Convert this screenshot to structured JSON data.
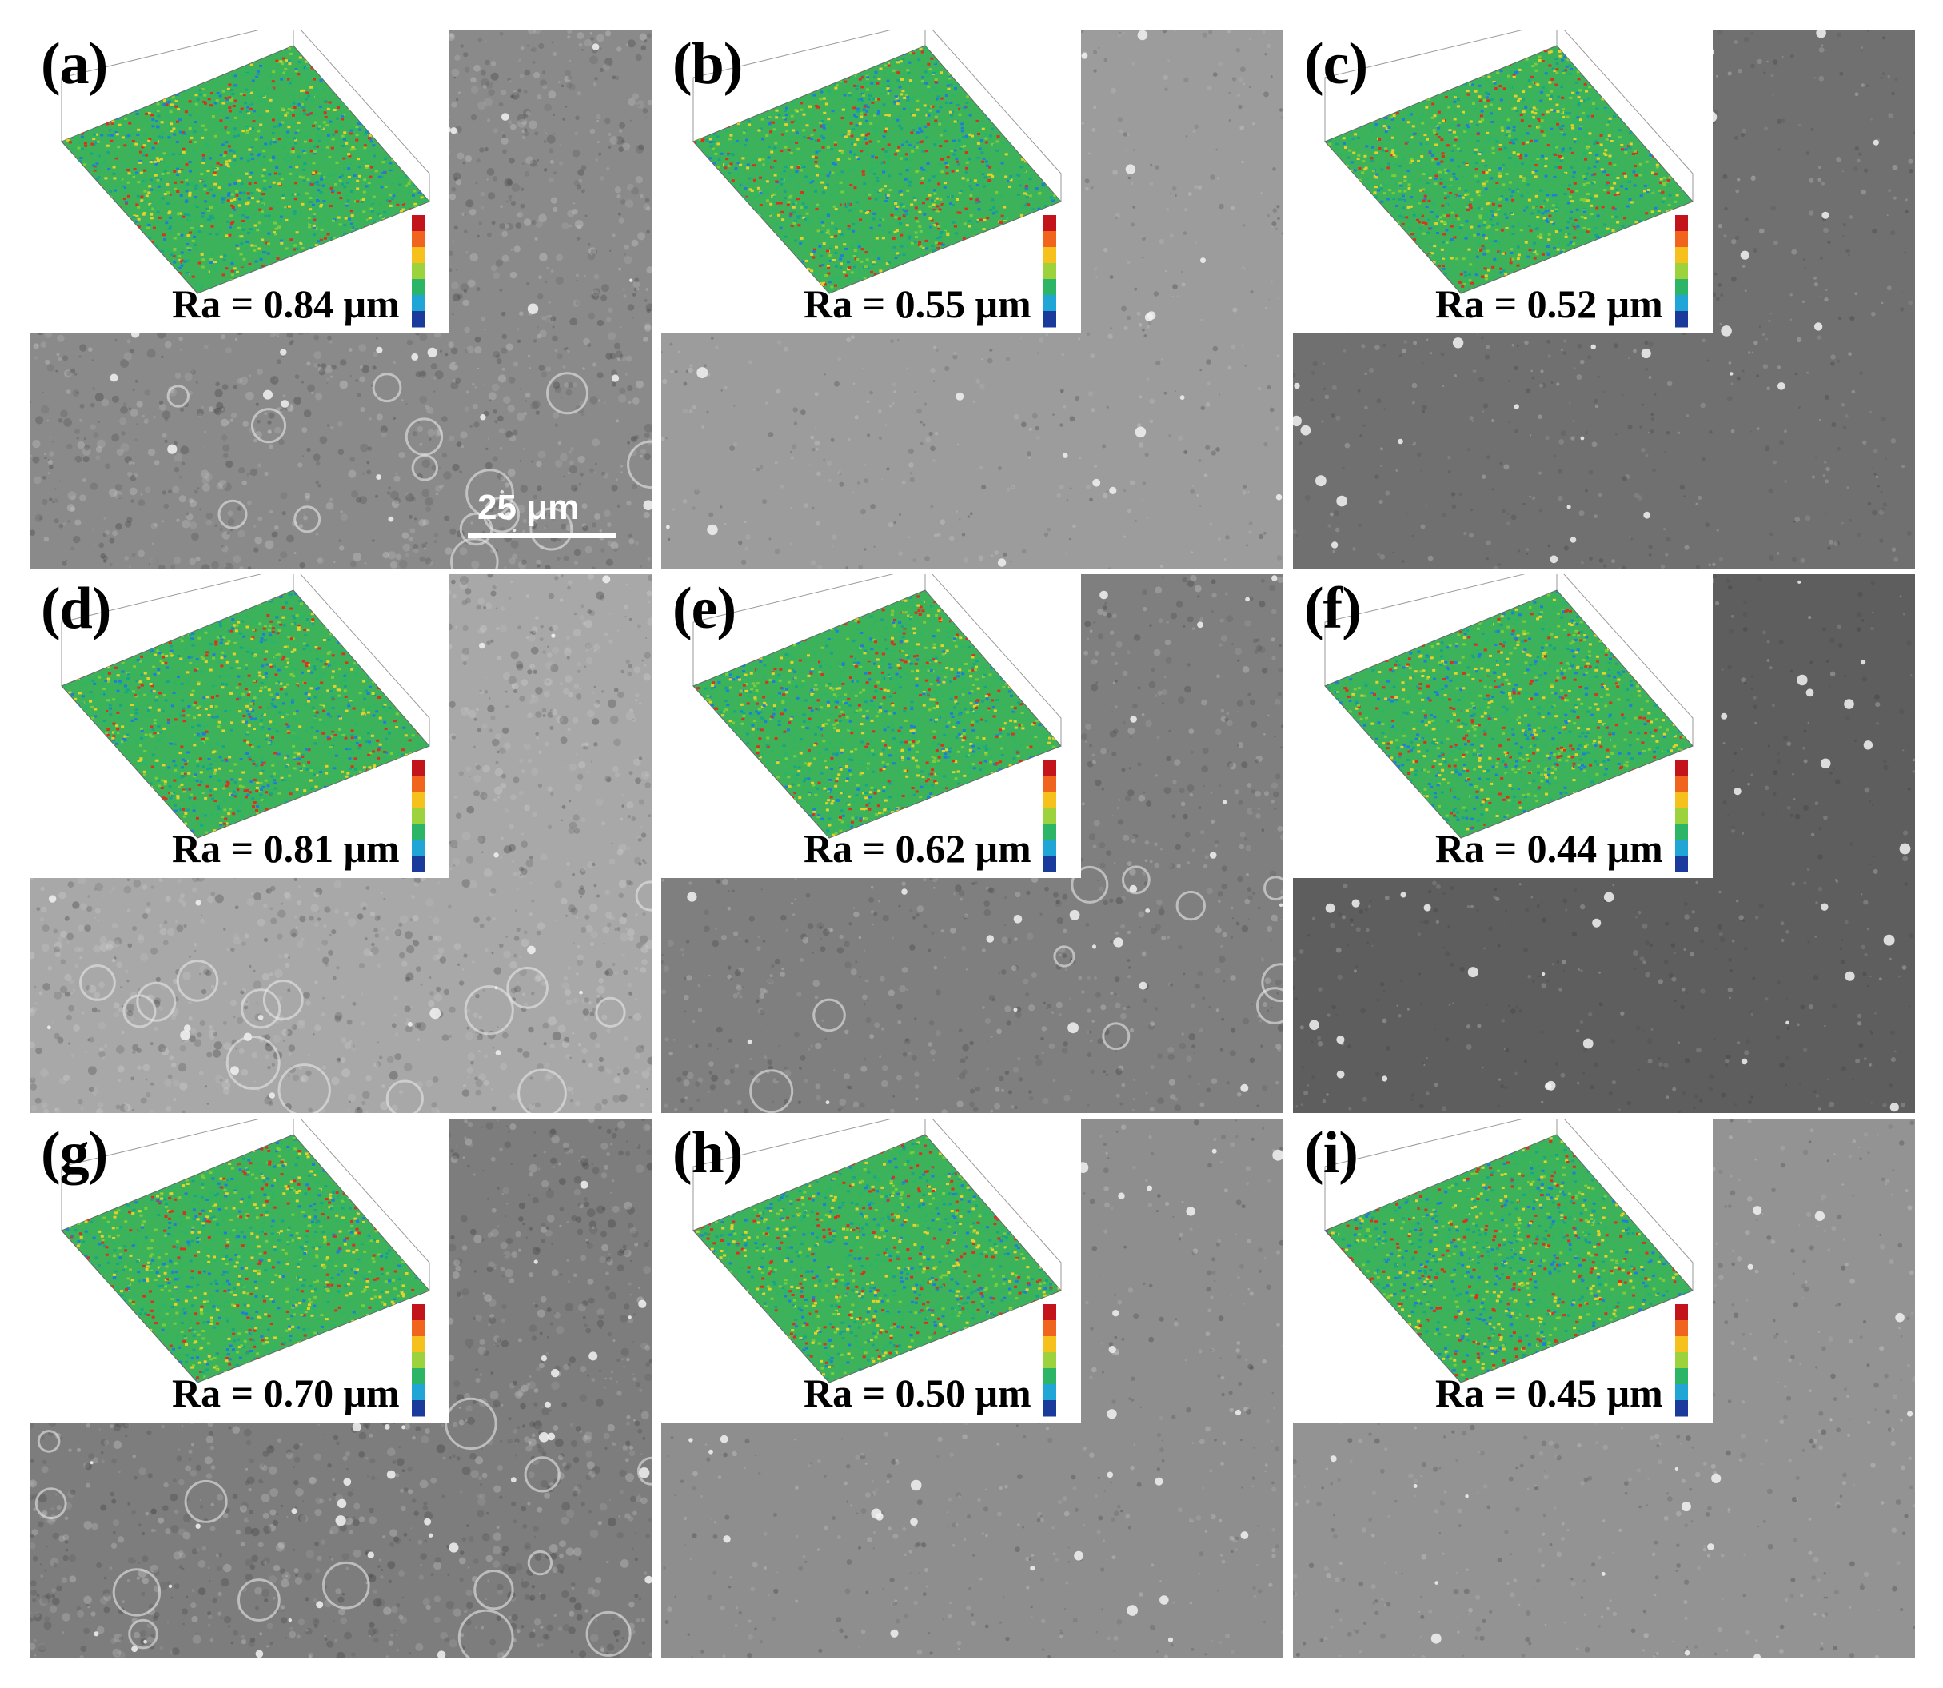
{
  "panels": [
    {
      "label": "(a)",
      "ra": "Ra = 0.84 μm"
    },
    {
      "label": "(b)",
      "ra": "Ra = 0.55 μm"
    },
    {
      "label": "(c)",
      "ra": "Ra = 0.52 μm"
    },
    {
      "label": "(d)",
      "ra": "Ra = 0.81 μm"
    },
    {
      "label": "(e)",
      "ra": "Ra = 0.62 μm"
    },
    {
      "label": "(f)",
      "ra": "Ra = 0.44 μm"
    },
    {
      "label": "(g)",
      "ra": "Ra = 0.70 μm"
    },
    {
      "label": "(h)",
      "ra": "Ra = 0.50 μm"
    },
    {
      "label": "(i)",
      "ra": "Ra = 0.45 μm"
    }
  ],
  "scale_bar": {
    "label": "25  μm"
  },
  "colors": {
    "sem_tones": [
      "#8a8a8a",
      "#9c9c9c",
      "#707070",
      "#a8a8a8",
      "#7f7f7f",
      "#5e5e5e",
      "#7d7d7d",
      "#8e8e8e",
      "#939393"
    ],
    "colorbar": [
      "#c4141b",
      "#f0641e",
      "#f7c11d",
      "#9cd23c",
      "#2db567",
      "#1fa6d6",
      "#1a3b9c"
    ]
  }
}
